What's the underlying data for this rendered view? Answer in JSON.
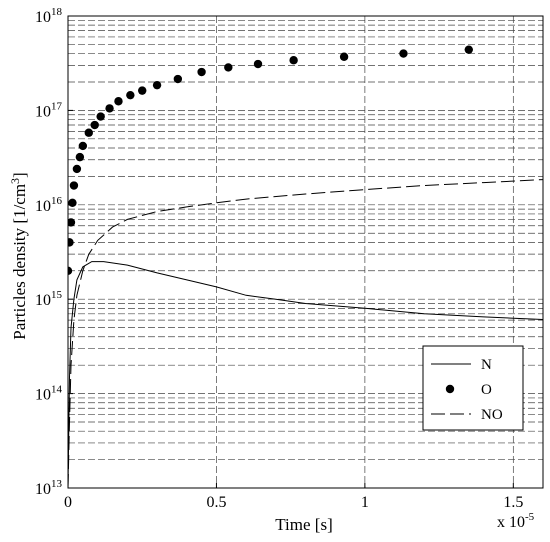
{
  "chart_data": {
    "type": "line",
    "title": "",
    "xlabel": "Time [s]",
    "ylabel_main": "Particles density [1/cm",
    "ylabel_sup": "3",
    "ylabel_tail": "]",
    "x_multiplier": {
      "base": "x 10",
      "exp": "-5"
    },
    "xlim": [
      0,
      1.6e-05
    ],
    "ylim": [
      10000000000000.0,
      1e+18
    ],
    "yscale": "log",
    "grid": true,
    "legend_position": "bottom-right",
    "x_ticks": [
      {
        "value": 0,
        "label": "0"
      },
      {
        "value": 5e-06,
        "label": "0.5"
      },
      {
        "value": 1e-05,
        "label": "1"
      },
      {
        "value": 1.5e-05,
        "label": "1.5"
      }
    ],
    "y_ticks": [
      {
        "value": 10000000000000.0,
        "base": "10",
        "exp": "13"
      },
      {
        "value": 100000000000000.0,
        "base": "10",
        "exp": "14"
      },
      {
        "value": 1000000000000000.0,
        "base": "10",
        "exp": "15"
      },
      {
        "value": 1e+16,
        "base": "10",
        "exp": "16"
      },
      {
        "value": 1e+17,
        "base": "10",
        "exp": "17"
      },
      {
        "value": 1e+18,
        "base": "10",
        "exp": "18"
      }
    ],
    "series": [
      {
        "name": "N",
        "style": "solid",
        "color": "#000000",
        "x": [
          0,
          2e-08,
          5e-08,
          1e-07,
          2e-07,
          3e-07,
          5e-07,
          8e-07,
          1.2e-06,
          2e-06,
          3e-06,
          4e-06,
          5e-06,
          6e-06,
          7e-06,
          8e-06,
          1e-05,
          1.2e-05,
          1.4e-05,
          1.6e-05
        ],
        "y": [
          10000000000000.0,
          30000000000000.0,
          150000000000000.0,
          500000000000000.0,
          1000000000000000.0,
          1600000000000000.0,
          2200000000000000.0,
          2500000000000000.0,
          2500000000000000.0,
          2300000000000000.0,
          1900000000000000.0,
          1600000000000000.0,
          1350000000000000.0,
          1100000000000000.0,
          1000000000000000.0,
          900000000000000.0,
          800000000000000.0,
          700000000000000.0,
          650000000000000.0,
          610000000000000.0
        ]
      },
      {
        "name": "O",
        "style": "markers",
        "color": "#000000",
        "x": [
          0.0,
          5e-08,
          1e-07,
          1.5e-07,
          2e-07,
          3e-07,
          4e-07,
          5e-07,
          7e-07,
          9e-07,
          1.1e-06,
          1.4e-06,
          1.7e-06,
          2.1e-06,
          2.5e-06,
          3e-06,
          3.7e-06,
          4.5e-06,
          5.4e-06,
          6.4e-06,
          7.6e-06,
          9.3e-06,
          1.13e-05,
          1.35e-05
        ],
        "y": [
          2000000000000000.0,
          4000000000000000.0,
          6500000000000000.0,
          1.05e+16,
          1.6e+16,
          2.4e+16,
          3.2e+16,
          4.2e+16,
          5.8e+16,
          7e+16,
          8.6e+16,
          1.05e+17,
          1.25e+17,
          1.45e+17,
          1.62e+17,
          1.85e+17,
          2.15e+17,
          2.55e+17,
          2.85e+17,
          3.1e+17,
          3.4e+17,
          3.7e+17,
          4e+17,
          4.4e+17
        ]
      },
      {
        "name": "NO",
        "style": "dashed",
        "color": "#000000",
        "x": [
          0,
          5e-08,
          1e-07,
          2e-07,
          3e-07,
          5e-07,
          7e-07,
          1e-06,
          1.5e-06,
          2e-06,
          3e-06,
          4e-06,
          5e-06,
          6e-06,
          8e-06,
          1e-05,
          1.2e-05,
          1.4e-05,
          1.6e-05
        ],
        "y": [
          10000000000000.0,
          50000000000000.0,
          200000000000000.0,
          600000000000000.0,
          1100000000000000.0,
          2000000000000000.0,
          3000000000000000.0,
          4200000000000000.0,
          5800000000000000.0,
          7000000000000000.0,
          8500000000000000.0,
          9500000000000000.0,
          1.05e+16,
          1.15e+16,
          1.3e+16,
          1.45e+16,
          1.6e+16,
          1.72e+16,
          1.85e+16
        ]
      }
    ]
  }
}
